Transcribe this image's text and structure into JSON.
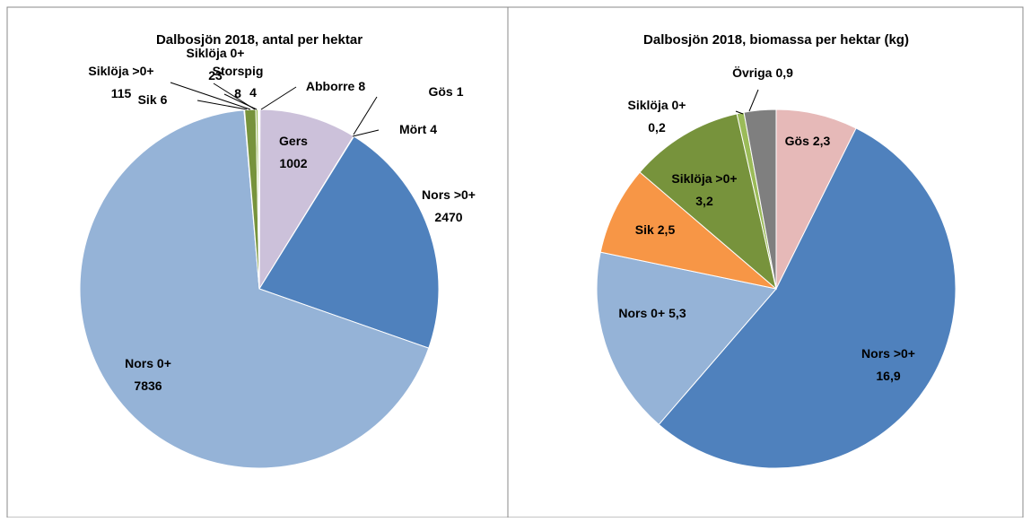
{
  "chart_data": [
    {
      "type": "pie",
      "title": "Dalbosjön 2018, antal per hektar",
      "categories": [
        "Abborre",
        "Gers",
        "Gös",
        "Mört",
        "Nors >0+",
        "Nors 0+",
        "Sik",
        "Siklöja >0+",
        "Siklöja 0+",
        "Storspig",
        null
      ],
      "values": [
        8,
        1002,
        1,
        4,
        2470,
        7836,
        6,
        115,
        23,
        8,
        4
      ],
      "colors": [
        "#c0504d",
        "#ccc1da",
        "#e6b9b8",
        "#8064a2",
        "#4f81bd",
        "#95b3d7",
        "#f79646",
        "#77933c",
        "#9bbb59",
        "#4bacc6",
        "#7f7f7f"
      ]
    },
    {
      "type": "pie",
      "title": "Dalbosjön 2018, biomassa per hektar (kg)",
      "categories": [
        "Gös",
        "Nors >0+",
        "Nors 0+",
        "Sik",
        "Siklöja >0+",
        "Siklöja 0+",
        "Övriga"
      ],
      "values": [
        2.3,
        16.9,
        5.3,
        2.5,
        3.2,
        0.2,
        0.9
      ],
      "value_labels": [
        "2,3",
        "16,9",
        "5,3",
        "2,5",
        "3,2",
        "0,2",
        "0,9"
      ],
      "colors": [
        "#e6b9b8",
        "#4f81bd",
        "#95b3d7",
        "#f79646",
        "#77933c",
        "#9bbb59",
        "#7f7f7f"
      ]
    }
  ]
}
